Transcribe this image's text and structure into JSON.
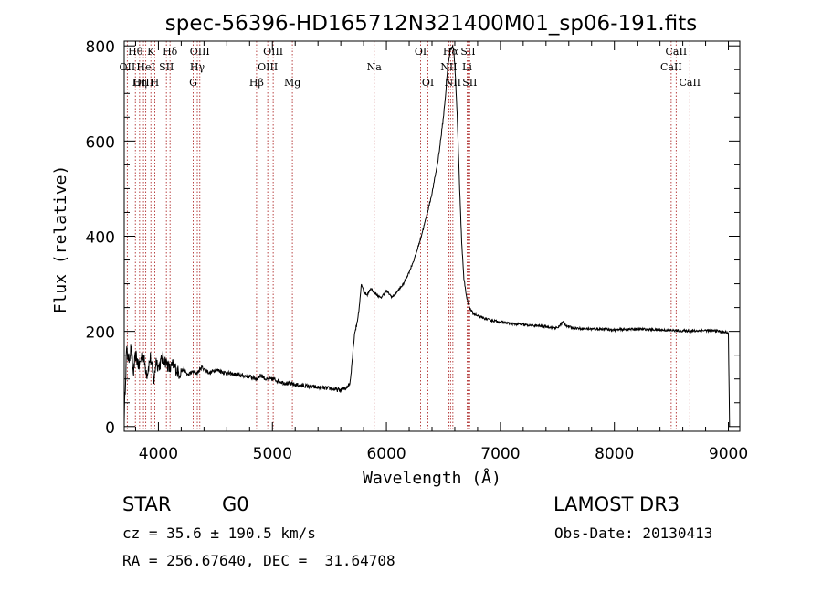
{
  "chart_data": {
    "type": "line",
    "title": "spec-56396-HD165712N321400M01_sp06-191.fits",
    "xlabel": "Wavelength (Å)",
    "ylabel": "Flux (relative)",
    "xlim": [
      3700,
      9100
    ],
    "ylim": [
      -10,
      810
    ],
    "xticks": [
      4000,
      5000,
      6000,
      7000,
      8000,
      9000
    ],
    "yticks": [
      0,
      200,
      400,
      600,
      800
    ],
    "series": [
      {
        "name": "flux",
        "x": [
          3700,
          3720,
          3740,
          3760,
          3780,
          3800,
          3830,
          3860,
          3900,
          3930,
          3960,
          3980,
          4000,
          4040,
          4080,
          4100,
          4130,
          4180,
          4220,
          4260,
          4300,
          4340,
          4380,
          4450,
          4500,
          4600,
          4700,
          4800,
          4860,
          4900,
          4950,
          5000,
          5100,
          5200,
          5300,
          5400,
          5500,
          5600,
          5640,
          5680,
          5700,
          5720,
          5740,
          5760,
          5780,
          5800,
          5830,
          5860,
          5900,
          5950,
          6000,
          6050,
          6100,
          6150,
          6200,
          6250,
          6300,
          6350,
          6400,
          6450,
          6480,
          6500,
          6520,
          6540,
          6560,
          6575,
          6590,
          6600,
          6620,
          6640,
          6660,
          6680,
          6700,
          6720,
          6740,
          6760,
          6780,
          6800,
          6850,
          6900,
          7000,
          7100,
          7200,
          7300,
          7400,
          7500,
          7550,
          7580,
          7620,
          7700,
          7800,
          7900,
          8000,
          8100,
          8200,
          8300,
          8400,
          8500,
          8600,
          8700,
          8800,
          8900,
          9000,
          9010
        ],
        "values": [
          20,
          160,
          140,
          165,
          110,
          150,
          125,
          155,
          110,
          145,
          95,
          140,
          125,
          145,
          130,
          120,
          130,
          112,
          120,
          108,
          115,
          112,
          125,
          112,
          120,
          112,
          108,
          105,
          100,
          108,
          98,
          100,
          92,
          88,
          85,
          82,
          80,
          76,
          80,
          90,
          140,
          195,
          215,
          245,
          300,
          285,
          275,
          290,
          280,
          270,
          285,
          272,
          285,
          300,
          325,
          355,
          395,
          440,
          490,
          555,
          610,
          650,
          700,
          760,
          790,
          800,
          795,
          760,
          660,
          520,
          390,
          310,
          275,
          255,
          245,
          238,
          235,
          232,
          228,
          224,
          220,
          216,
          214,
          212,
          210,
          207,
          220,
          212,
          208,
          206,
          205,
          205,
          203,
          204,
          205,
          204,
          203,
          202,
          201,
          201,
          202,
          201,
          197,
          0
        ]
      }
    ],
    "line_annotations": [
      {
        "label": "Hθ",
        "x": 3798,
        "row": 1
      },
      {
        "label": "OII",
        "x": 3727,
        "row": 2
      },
      {
        "label": "OIII",
        "x": 3869,
        "row": 3
      },
      {
        "label": "K",
        "x": 3934,
        "row": 1
      },
      {
        "label": "HeI",
        "x": 3889,
        "row": 2
      },
      {
        "label": "Hη",
        "x": 3835,
        "row": 3
      },
      {
        "label": "SII",
        "x": 4070,
        "row": 2
      },
      {
        "label": "H",
        "x": 3968,
        "row": 3
      },
      {
        "label": "Hδ",
        "x": 4102,
        "row": 1
      },
      {
        "label": "OIII",
        "x": 4363,
        "row": 1
      },
      {
        "label": "Hγ",
        "x": 4341,
        "row": 2
      },
      {
        "label": "G",
        "x": 4305,
        "row": 3
      },
      {
        "label": "Hβ",
        "x": 4861,
        "row": 3
      },
      {
        "label": "OIII",
        "x": 5007,
        "row": 1
      },
      {
        "label": "OIII",
        "x": 4959,
        "row": 2
      },
      {
        "label": "Mg",
        "x": 5175,
        "row": 3
      },
      {
        "label": "Na",
        "x": 5893,
        "row": 2
      },
      {
        "label": "OI",
        "x": 6300,
        "row": 1
      },
      {
        "label": "OI",
        "x": 6364,
        "row": 3
      },
      {
        "label": "Hα",
        "x": 6563,
        "row": 1
      },
      {
        "label": "SII",
        "x": 6716,
        "row": 1
      },
      {
        "label": "NII",
        "x": 6548,
        "row": 2
      },
      {
        "label": "Li",
        "x": 6708,
        "row": 2
      },
      {
        "label": "NII",
        "x": 6583,
        "row": 3
      },
      {
        "label": "SII",
        "x": 6731,
        "row": 3
      },
      {
        "label": "CaII",
        "x": 8542,
        "row": 1
      },
      {
        "label": "CaII",
        "x": 8498,
        "row": 2
      },
      {
        "label": "CaII",
        "x": 8662,
        "row": 3
      }
    ]
  },
  "info": {
    "class": "STAR",
    "subclass": "G0",
    "survey": "LAMOST DR3",
    "cz": "cz = 35.6 ± 190.5 km/s",
    "obs_date": "Obs-Date: 20130413",
    "radec": "RA = 256.67640, DEC =  31.64708"
  }
}
